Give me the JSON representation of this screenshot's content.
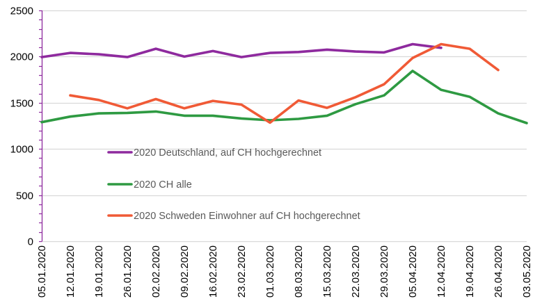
{
  "chart_data": {
    "type": "line",
    "title": "",
    "xlabel": "",
    "ylabel": "",
    "ylim": [
      0,
      2500
    ],
    "y_ticks": [
      0,
      500,
      1000,
      1500,
      2000,
      2500
    ],
    "y_minor_step": 100,
    "grid": true,
    "legend_position": "center-left inside plot",
    "categories": [
      "05.01.2020",
      "12.01.2020",
      "19.01.2020",
      "26.01.2020",
      "02.02.2020",
      "09.02.2020",
      "16.02.2020",
      "23.02.2020",
      "01.03.2020",
      "08.03.2020",
      "15.03.2020",
      "22.03.2020",
      "29.03.2020",
      "05.04.2020",
      "12.04.2020",
      "19.04.2020",
      "26.04.2020",
      "03.05.2020"
    ],
    "series": [
      {
        "name": "2020 Deutschland, auf CH hochgerechnet",
        "color": "#8E2A9E",
        "values": [
          1995,
          2040,
          2025,
          1995,
          2085,
          2000,
          2060,
          1995,
          2040,
          2050,
          2075,
          2055,
          2045,
          2135,
          2095,
          null,
          null,
          null
        ]
      },
      {
        "name": "2020 CH alle",
        "color": "#2E9A42",
        "values": [
          1290,
          1350,
          1385,
          1390,
          1405,
          1360,
          1360,
          1330,
          1310,
          1325,
          1360,
          1485,
          1580,
          1845,
          1640,
          1565,
          1385,
          1280
        ]
      },
      {
        "name": "2020 Schweden Einwohner auf CH hochgerechnet",
        "color": "#F05A36",
        "values": [
          null,
          1580,
          1530,
          1440,
          1540,
          1440,
          1520,
          1480,
          1285,
          1525,
          1445,
          1560,
          1700,
          1985,
          2135,
          2085,
          1855,
          null
        ]
      }
    ],
    "axis_color": "#8E2A9E",
    "grid_color": "#D9D9D9"
  }
}
